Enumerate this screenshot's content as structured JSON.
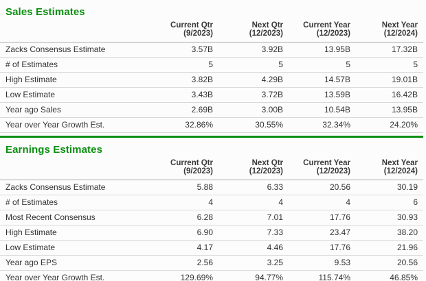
{
  "colors": {
    "accent_green": "#0d8f12",
    "header_border_gray": "#a9a9a9",
    "row_border_gray": "#d9d9d9",
    "text": "#333333",
    "background": "#fcfcfc"
  },
  "sections": [
    {
      "id": "sales-estimates",
      "title": "Sales Estimates",
      "columns": [
        {
          "label": "Current Qtr",
          "sub": "(9/2023)"
        },
        {
          "label": "Next Qtr",
          "sub": "(12/2023)"
        },
        {
          "label": "Current Year",
          "sub": "(12/2023)"
        },
        {
          "label": "Next Year",
          "sub": "(12/2024)"
        }
      ],
      "rows": [
        {
          "label": "Zacks Consensus Estimate",
          "values": [
            "3.57B",
            "3.92B",
            "13.95B",
            "17.32B"
          ]
        },
        {
          "label": "# of Estimates",
          "values": [
            "5",
            "5",
            "5",
            "5"
          ]
        },
        {
          "label": "High Estimate",
          "values": [
            "3.82B",
            "4.29B",
            "14.57B",
            "19.01B"
          ]
        },
        {
          "label": "Low Estimate",
          "values": [
            "3.43B",
            "3.72B",
            "13.59B",
            "16.42B"
          ]
        },
        {
          "label": "Year ago Sales",
          "values": [
            "2.69B",
            "3.00B",
            "10.54B",
            "13.95B"
          ]
        },
        {
          "label": "Year over Year Growth Est.",
          "values": [
            "32.86%",
            "30.55%",
            "32.34%",
            "24.20%"
          ]
        }
      ]
    },
    {
      "id": "earnings-estimates",
      "title": "Earnings Estimates",
      "columns": [
        {
          "label": "Current Qtr",
          "sub": "(9/2023)"
        },
        {
          "label": "Next Qtr",
          "sub": "(12/2023)"
        },
        {
          "label": "Current Year",
          "sub": "(12/2023)"
        },
        {
          "label": "Next Year",
          "sub": "(12/2024)"
        }
      ],
      "rows": [
        {
          "label": "Zacks Consensus Estimate",
          "values": [
            "5.88",
            "6.33",
            "20.56",
            "30.19"
          ]
        },
        {
          "label": "# of Estimates",
          "values": [
            "4",
            "4",
            "4",
            "6"
          ]
        },
        {
          "label": "Most Recent Consensus",
          "values": [
            "6.28",
            "7.01",
            "17.76",
            "30.93"
          ]
        },
        {
          "label": "High Estimate",
          "values": [
            "6.90",
            "7.33",
            "23.47",
            "38.20"
          ]
        },
        {
          "label": "Low Estimate",
          "values": [
            "4.17",
            "4.46",
            "17.76",
            "21.96"
          ]
        },
        {
          "label": "Year ago EPS",
          "values": [
            "2.56",
            "3.25",
            "9.53",
            "20.56"
          ]
        },
        {
          "label": "Year over Year Growth Est.",
          "values": [
            "129.69%",
            "94.77%",
            "115.74%",
            "46.85%"
          ]
        }
      ]
    }
  ]
}
